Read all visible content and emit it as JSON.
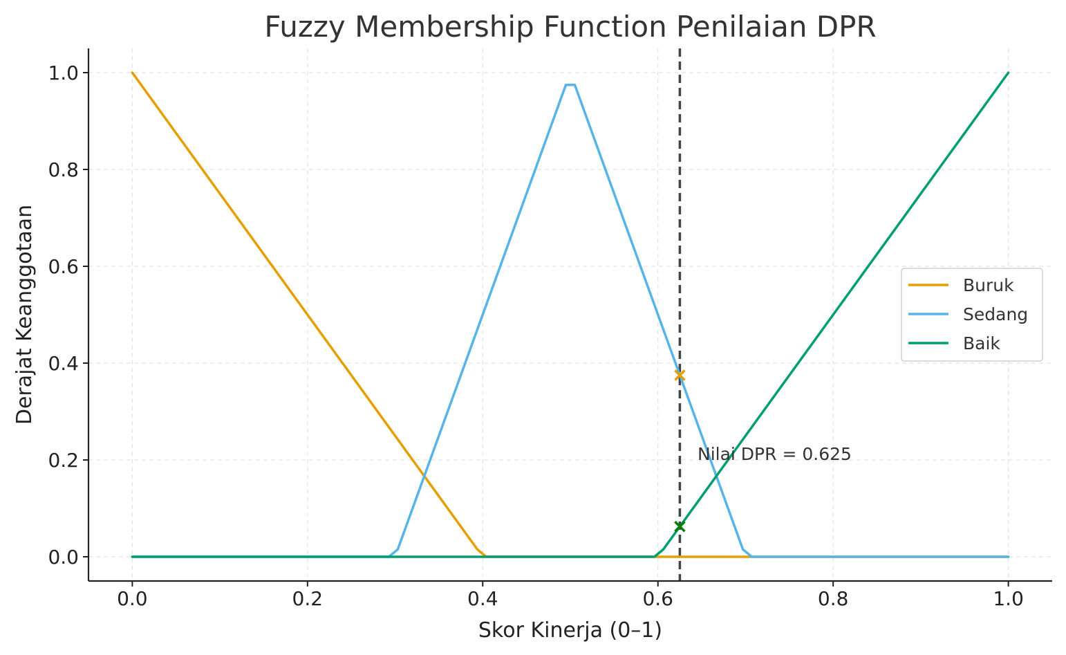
{
  "chart_data": {
    "type": "line",
    "title": "Fuzzy Membership Function Penilaian DPR",
    "xlabel": "Skor Kinerja (0–1)",
    "ylabel": "Derajat Keanggotaan",
    "xlim": [
      -0.05,
      1.05
    ],
    "ylim": [
      -0.05,
      1.05
    ],
    "x_ticks": [
      0.0,
      0.2,
      0.4,
      0.6,
      0.8,
      1.0
    ],
    "x_tick_labels": [
      "0.0",
      "0.2",
      "0.4",
      "0.6",
      "0.8",
      "1.0"
    ],
    "y_ticks": [
      0.0,
      0.2,
      0.4,
      0.6,
      0.8,
      1.0
    ],
    "y_tick_labels": [
      "0.0",
      "0.2",
      "0.4",
      "0.6",
      "0.8",
      "1.0"
    ],
    "grid": true,
    "legend_position": "center-right",
    "series": [
      {
        "name": "Buruk",
        "color": "#E69F00",
        "x": [
          0.0,
          0.3939,
          0.404,
          0.7071,
          1.0
        ],
        "y": [
          1.0,
          0.0152,
          0.0,
          0.0,
          0.0
        ]
      },
      {
        "name": "Sedang",
        "color": "#56B4E9",
        "x": [
          0.0,
          0.2929,
          0.303,
          0.4949,
          0.5051,
          0.697,
          0.7071,
          1.0
        ],
        "y": [
          0.0,
          0.0,
          0.0152,
          0.9747,
          0.9747,
          0.0152,
          0.0,
          0.0
        ]
      },
      {
        "name": "Baik",
        "color": "#009E73",
        "x": [
          0.0,
          0.596,
          0.6061,
          1.0
        ],
        "y": [
          0.0,
          0.0,
          0.0152,
          1.0
        ]
      }
    ],
    "vline": {
      "x": 0.625,
      "color": "#444444",
      "style": "dashed"
    },
    "markers": [
      {
        "x": 0.625,
        "y": 0.375,
        "color": "#E69F00",
        "shape": "x"
      },
      {
        "x": 0.625,
        "y": 0.0625,
        "color": "#008000",
        "shape": "x"
      }
    ],
    "annotation": {
      "text": "Nilai DPR = 0.625",
      "x": 0.645,
      "y": 0.2
    }
  }
}
